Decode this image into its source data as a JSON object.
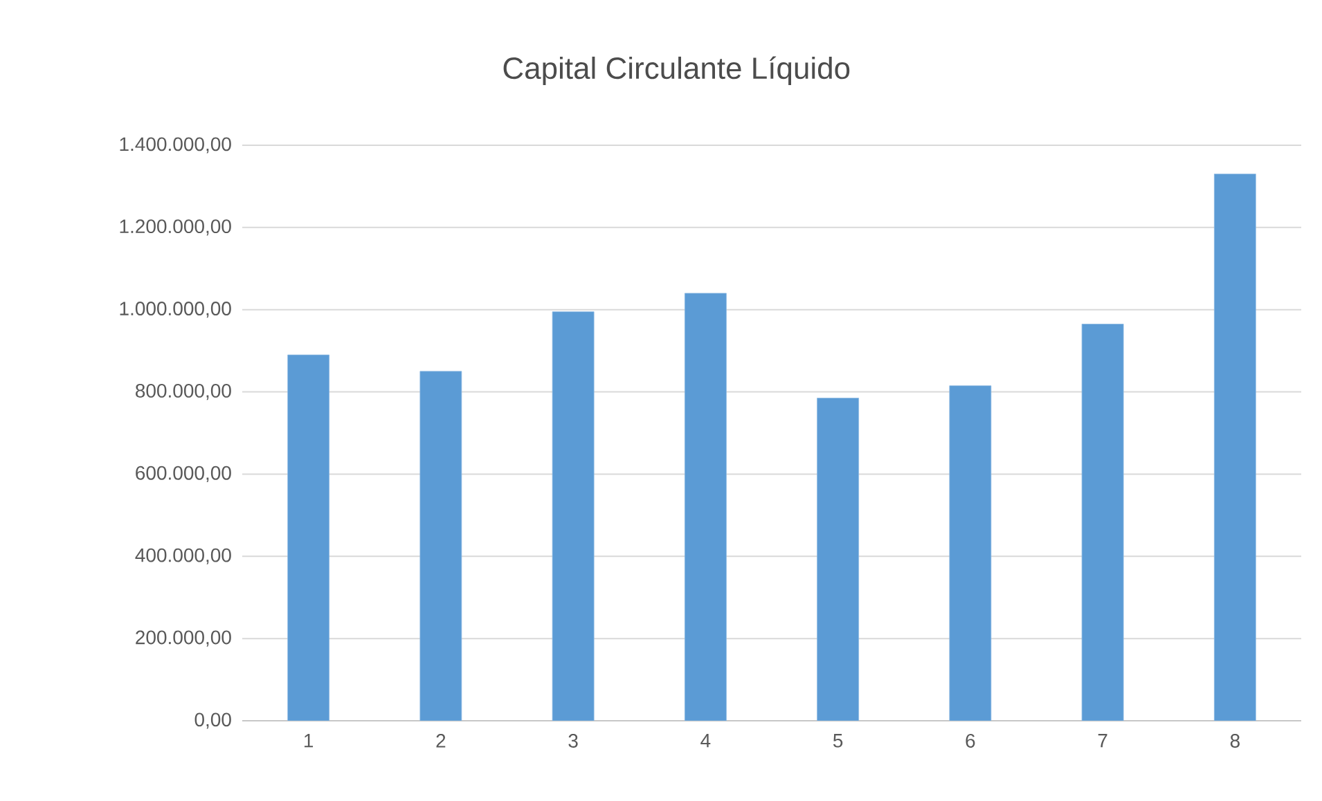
{
  "chart_data": {
    "type": "bar",
    "title": "Capital Circulante Líquido",
    "categories": [
      "1",
      "2",
      "3",
      "4",
      "5",
      "6",
      "7",
      "8"
    ],
    "values": [
      890000,
      850000,
      995000,
      1040000,
      785000,
      815000,
      965000,
      1330000
    ],
    "color": "#5b9bd5",
    "ylim": [
      0,
      1400000
    ],
    "yticks": [
      {
        "value": 0,
        "label": "0,00"
      },
      {
        "value": 200000,
        "label": "200.000,00"
      },
      {
        "value": 400000,
        "label": "400.000,00"
      },
      {
        "value": 600000,
        "label": "600.000,00"
      },
      {
        "value": 800000,
        "label": "800.000,00"
      },
      {
        "value": 1000000,
        "label": "1.000.000,00"
      },
      {
        "value": 1200000,
        "label": "1.200.000,00"
      },
      {
        "value": 1400000,
        "label": "1.400.000,00"
      }
    ],
    "grid": "y"
  }
}
